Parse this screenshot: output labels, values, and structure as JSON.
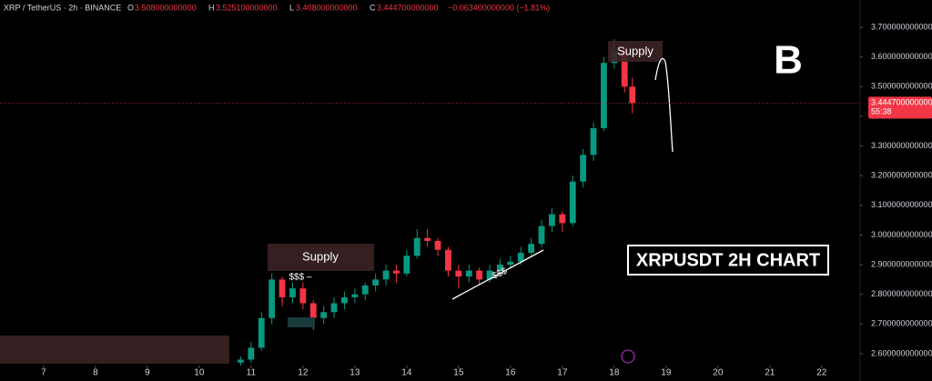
{
  "header": {
    "symbol": "XRP / TetherUS · 2h · BINANCE",
    "open_label": "O",
    "open": "3.508000000000",
    "high_label": "H",
    "high": "3.525100000000",
    "low_label": "L",
    "low": "3.408000000000",
    "close_label": "C",
    "close": "3.444700000000",
    "change": "−0.063400000000 (−1.81%)"
  },
  "chart_data": {
    "type": "candlestick",
    "x": [
      10.8,
      11.0,
      11.2,
      11.4,
      11.6,
      11.8,
      12.0,
      12.2,
      12.4,
      12.6,
      12.8,
      13.0,
      13.2,
      13.4,
      13.6,
      13.8,
      14.0,
      14.2,
      14.4,
      14.6,
      14.8,
      15.0,
      15.2,
      15.4,
      15.6,
      15.8,
      16.0,
      16.2,
      16.4,
      16.6,
      16.8,
      17.0,
      17.2,
      17.4,
      17.6,
      17.8,
      18.0,
      18.2,
      18.35
    ],
    "open": [
      2.57,
      2.58,
      2.62,
      2.72,
      2.85,
      2.79,
      2.82,
      2.77,
      2.72,
      2.74,
      2.77,
      2.79,
      2.8,
      2.83,
      2.85,
      2.88,
      2.87,
      2.93,
      2.99,
      2.98,
      2.95,
      2.88,
      2.86,
      2.88,
      2.85,
      2.88,
      2.9,
      2.91,
      2.94,
      2.97,
      3.03,
      3.07,
      3.04,
      3.18,
      3.27,
      3.36,
      3.58,
      3.62,
      3.5
    ],
    "high": [
      2.59,
      2.64,
      2.74,
      2.87,
      2.86,
      2.84,
      2.84,
      2.78,
      2.76,
      2.79,
      2.81,
      2.82,
      2.84,
      2.87,
      2.9,
      2.9,
      2.95,
      3.02,
      3.02,
      2.99,
      2.96,
      2.9,
      2.9,
      2.89,
      2.9,
      2.92,
      2.93,
      2.96,
      2.99,
      3.05,
      3.09,
      3.08,
      3.2,
      3.29,
      3.38,
      3.6,
      3.66,
      3.64,
      3.53
    ],
    "low": [
      2.56,
      2.57,
      2.61,
      2.7,
      2.76,
      2.77,
      2.75,
      2.68,
      2.7,
      2.72,
      2.75,
      2.77,
      2.78,
      2.81,
      2.83,
      2.84,
      2.86,
      2.92,
      2.96,
      2.93,
      2.86,
      2.82,
      2.84,
      2.83,
      2.84,
      2.87,
      2.89,
      2.9,
      2.93,
      2.96,
      3.01,
      3.01,
      3.03,
      3.16,
      3.25,
      3.35,
      3.56,
      3.48,
      3.41
    ],
    "close": [
      2.58,
      2.62,
      2.72,
      2.85,
      2.79,
      2.82,
      2.77,
      2.72,
      2.74,
      2.77,
      2.79,
      2.8,
      2.83,
      2.85,
      2.88,
      2.87,
      2.93,
      2.99,
      2.98,
      2.95,
      2.88,
      2.86,
      2.88,
      2.85,
      2.88,
      2.9,
      2.91,
      2.94,
      2.97,
      3.03,
      3.07,
      3.04,
      3.18,
      3.27,
      3.36,
      3.58,
      3.62,
      3.5,
      3.4447
    ],
    "up_color": "#089981",
    "down_color": "#f23645",
    "xlim": [
      6.16,
      22.74
    ],
    "xticks": [
      7,
      8,
      9,
      10,
      11,
      12,
      13,
      14,
      15,
      16,
      17,
      18,
      19,
      20,
      21,
      22
    ],
    "ylim": [
      2.56,
      3.792
    ],
    "yticks": [
      {
        "value": 2.6,
        "label": "2.600000000000"
      },
      {
        "value": 2.7,
        "label": "2.700000000000"
      },
      {
        "value": 2.8,
        "label": "2.800000000000"
      },
      {
        "value": 2.9,
        "label": "2.900000000000"
      },
      {
        "value": 3.0,
        "label": "3.000000000000"
      },
      {
        "value": 3.1,
        "label": "3.100000000000"
      },
      {
        "value": 3.2,
        "label": "3.200000000000"
      },
      {
        "value": 3.3,
        "label": "3.300000000000"
      },
      {
        "value": 3.4,
        "label": "3.400000000000"
      },
      {
        "value": 3.5,
        "label": "3.500000000000"
      },
      {
        "value": 3.6,
        "label": "3.600000000000"
      },
      {
        "value": 3.7,
        "label": "3.700000000000"
      }
    ],
    "last_price": {
      "value": 3.4447,
      "label": "3.444700000000",
      "countdown": "55:38"
    },
    "annotations": {
      "supply_low": "Supply",
      "supply_high": "Supply",
      "liquidity_high": "$$$ –",
      "liquidity_low": "$$$",
      "caption": "XRPUSDT 2H CHART",
      "logo": "B"
    }
  }
}
